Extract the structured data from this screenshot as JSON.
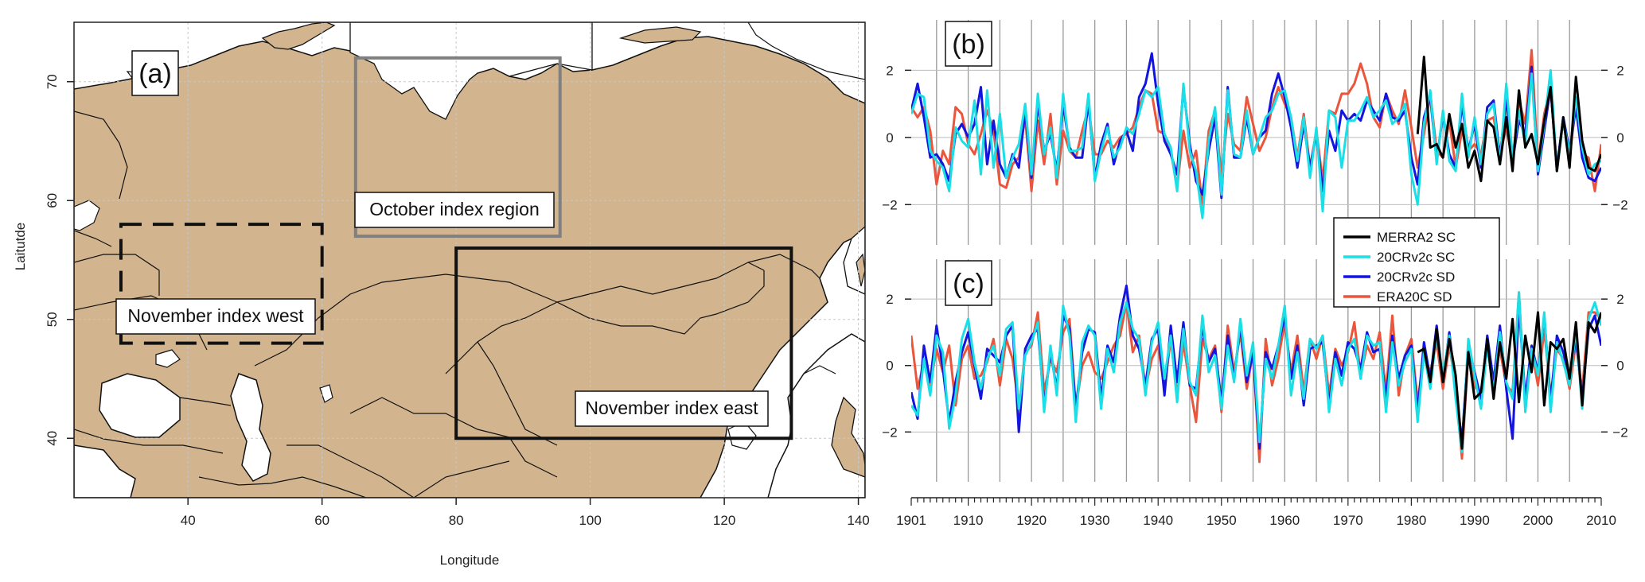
{
  "panel_a": {
    "label": "(a)",
    "xlabel": "Longitude",
    "ylabel": "Laitutde",
    "boxes": [
      {
        "name": "October index region",
        "label": "October index region",
        "lon": [
          65,
          95.5
        ],
        "lat": [
          57,
          72
        ],
        "style": "grey-solid"
      },
      {
        "name": "November index west",
        "label": "November index west",
        "lon": [
          30,
          60
        ],
        "lat": [
          48,
          58
        ],
        "style": "dashed"
      },
      {
        "name": "November index east",
        "label": "November index east",
        "lon": [
          80,
          130
        ],
        "lat": [
          40,
          56
        ],
        "style": "solid"
      }
    ]
  },
  "chart_data": [
    {
      "type": "map",
      "panel": "(a)",
      "xlabel": "Longitude",
      "ylabel": "Laitutde",
      "xlim": [
        23,
        141
      ],
      "ylim": [
        35,
        75
      ],
      "xticks": [
        40,
        60,
        80,
        100,
        120,
        140
      ],
      "yticks": [
        40,
        50,
        60,
        70
      ],
      "grid": true,
      "regions": [
        {
          "label": "October index region",
          "lon": [
            65,
            95.5
          ],
          "lat": [
            57,
            72
          ]
        },
        {
          "label": "November index west",
          "lon": [
            30,
            60
          ],
          "lat": [
            48,
            58
          ]
        },
        {
          "label": "November index east",
          "lon": [
            80,
            130
          ],
          "lat": [
            40,
            56
          ]
        }
      ]
    },
    {
      "type": "line",
      "panel": "(b)",
      "xlim": [
        1901,
        2010
      ],
      "ylim": [
        -3.2,
        3.5
      ],
      "xticks": [
        1901,
        1910,
        1920,
        1930,
        1940,
        1950,
        1960,
        1970,
        1980,
        1990,
        2000,
        2010
      ],
      "yticks": [
        -2,
        0,
        2
      ],
      "grid": true,
      "series": [
        {
          "name": "MERRA2 SC",
          "color": "#000000",
          "start": 1981,
          "values": [
            0.1,
            2.4,
            -0.3,
            -0.2,
            -0.6,
            0.7,
            -0.3,
            0.4,
            -0.9,
            -0.4,
            -1.3,
            0.5,
            0.3,
            -0.8,
            0.6,
            -1.0,
            1.4,
            -0.3,
            0.1,
            -0.8,
            0.5,
            1.5,
            -1.0,
            0.6,
            -0.9,
            1.8,
            -0.1,
            -0.9,
            -1.0,
            -0.5
          ]
        },
        {
          "name": "20CRv2c SC",
          "color": "#1adfe6",
          "start": 1901,
          "values": [
            0.7,
            1.3,
            1.2,
            -0.4,
            -0.7,
            -0.9,
            -1.6,
            0.3,
            -0.1,
            -0.3,
            1.1,
            -1.1,
            1.4,
            -0.9,
            0.7,
            -1.2,
            -0.6,
            -0.2,
            1.0,
            -1.1,
            1.3,
            -0.5,
            0.3,
            -1.2,
            1.3,
            -0.4,
            -0.4,
            -0.3,
            1.3,
            -1.3,
            -0.4,
            0.3,
            -0.6,
            -0.3,
            0.3,
            0.1,
            0.7,
            1.4,
            1.2,
            1.5,
            0.1,
            -0.3,
            -1.6,
            1.6,
            -0.4,
            -1.0,
            -2.4,
            -0.1,
            0.9,
            -1.7,
            1.4,
            -0.5,
            -0.6,
            0.8,
            -0.5,
            0.0,
            0.6,
            0.8,
            1.3,
            1.4,
            0.6,
            -0.7,
            0.6,
            -1.2,
            0.3,
            -2.2,
            0.8,
            0.6,
            -0.9,
            0.5,
            0.5,
            0.8,
            1.2,
            0.6,
            0.8,
            1.1,
            0.4,
            0.6,
            1.0,
            -1.1,
            -2.0,
            0.4,
            1.4,
            -0.8,
            0.8,
            -0.7,
            -1.0,
            1.3,
            -0.6,
            0.6,
            -0.8,
            0.7,
            1.0,
            -0.8,
            1.6,
            -0.6,
            0.8,
            -0.2,
            1.9,
            -1.0,
            0.4,
            2.0,
            -1.0,
            0.5,
            -0.5,
            1.2,
            -0.3,
            -1.1,
            -0.8,
            -0.7
          ]
        },
        {
          "name": "20CRv2c SD",
          "color": "#1414e0",
          "start": 1901,
          "values": [
            0.8,
            1.6,
            0.6,
            -0.6,
            -0.5,
            -0.8,
            -1.3,
            0.1,
            0.4,
            0.0,
            0.4,
            1.5,
            -0.8,
            0.5,
            -0.8,
            -1.2,
            -0.5,
            -0.9,
            0.8,
            -1.2,
            1.0,
            -0.4,
            0.1,
            -1.0,
            1.0,
            -0.3,
            -0.6,
            -0.6,
            1.1,
            -1.2,
            -0.2,
            0.4,
            -0.8,
            -0.1,
            0.2,
            -0.4,
            1.2,
            1.6,
            2.5,
            1.0,
            -0.1,
            -0.5,
            -1.1,
            1.5,
            -0.2,
            -1.3,
            -1.7,
            -0.4,
            0.6,
            -1.8,
            1.5,
            -0.6,
            -0.6,
            0.6,
            -0.5,
            0.0,
            0.2,
            1.3,
            1.9,
            1.2,
            0.3,
            -0.9,
            0.4,
            -0.9,
            0.1,
            -1.6,
            0.2,
            -0.4,
            0.8,
            0.5,
            0.7,
            0.5,
            1.1,
            0.8,
            0.5,
            1.3,
            0.6,
            0.5,
            0.8,
            -0.6,
            -1.4,
            0.6,
            1.2,
            -0.7,
            0.7,
            -0.5,
            -0.9,
            1.0,
            -0.4,
            0.4,
            -0.9,
            0.9,
            1.1,
            -0.6,
            1.2,
            -0.7,
            0.5,
            0.1,
            2.1,
            -1.1,
            0.2,
            1.5,
            -0.9,
            0.6,
            -0.4,
            0.9,
            -0.6,
            -1.2,
            -1.3,
            -0.9
          ]
        },
        {
          "name": "ERA20C SD",
          "color": "#ea553c",
          "start": 1901,
          "values": [
            0.9,
            0.6,
            0.9,
            0.2,
            -1.4,
            -0.4,
            -0.8,
            0.9,
            0.7,
            -0.2,
            -0.5,
            0.1,
            0.8,
            0.2,
            -1.4,
            -1.5,
            -0.8,
            -0.6,
            0.6,
            -1.6,
            0.5,
            -0.8,
            0.7,
            -1.4,
            0.2,
            -0.4,
            -0.6,
            0.2,
            0.9,
            -0.5,
            -0.5,
            -0.1,
            -0.3,
            0.0,
            0.1,
            0.3,
            0.9,
            1.4,
            1.3,
            0.2,
            0.1,
            -0.4,
            -1.5,
            0.2,
            -0.9,
            -0.4,
            -2.0,
            0.2,
            0.8,
            -1.2,
            0.7,
            -0.2,
            -0.4,
            1.2,
            0.4,
            -0.4,
            0.0,
            0.9,
            1.5,
            1.0,
            0.6,
            -0.6,
            0.7,
            -0.9,
            0.2,
            -1.3,
            0.8,
            0.7,
            1.3,
            1.3,
            1.6,
            2.2,
            1.6,
            0.6,
            0.3,
            1.3,
            0.8,
            0.4,
            1.4,
            0.3,
            -0.9,
            0.1,
            1.3,
            -0.4,
            -0.6,
            0.5,
            -0.9,
            0.2,
            -0.4,
            -0.2,
            -0.5,
            0.5,
            0.6,
            -0.5,
            0.3,
            -0.7,
            1.1,
            0.4,
            2.6,
            -0.8,
            0.7,
            1.5,
            -1.0,
            0.5,
            -0.6,
            1.0,
            -0.5,
            -0.6,
            -1.6,
            -0.2
          ]
        }
      ]
    },
    {
      "type": "line",
      "panel": "(c)",
      "xlim": [
        1901,
        2010
      ],
      "ylim": [
        -3.5,
        3.2
      ],
      "xticks": [
        1901,
        1910,
        1920,
        1930,
        1940,
        1950,
        1960,
        1970,
        1980,
        1990,
        2000,
        2010
      ],
      "yticks": [
        -2,
        0,
        2
      ],
      "grid": true,
      "series": [
        {
          "name": "MERRA2 SC",
          "color": "#000000",
          "start": 1981,
          "values": [
            0.4,
            0.5,
            -0.5,
            1.1,
            -0.5,
            0.8,
            -0.3,
            -2.5,
            0.4,
            -1.0,
            -0.8,
            0.8,
            -1.0,
            0.7,
            -0.4,
            1.4,
            -1.1,
            0.9,
            -0.2,
            1.6,
            -1.2,
            0.7,
            0.5,
            0.8,
            -0.4,
            1.3,
            -1.2,
            1.3,
            1.0,
            1.6
          ]
        },
        {
          "name": "20CRv2c SC",
          "color": "#1adfe6",
          "start": 1901,
          "values": [
            -1.2,
            -1.5,
            0.2,
            -0.9,
            0.9,
            0.4,
            -1.9,
            -0.9,
            0.8,
            1.4,
            0.1,
            -0.7,
            0.2,
            0.6,
            -0.3,
            1.1,
            1.3,
            -1.3,
            0.3,
            0.7,
            1.3,
            -1.4,
            0.6,
            -0.9,
            1.8,
            0.9,
            -1.7,
            0.7,
            1.2,
            0.9,
            -1.3,
            0.5,
            -0.2,
            1.3,
            1.9,
            1.1,
            0.8,
            -0.9,
            0.7,
            1.3,
            -0.4,
            0.9,
            -1.1,
            1.1,
            -0.5,
            -0.9,
            1.5,
            -0.2,
            0.3,
            -1.3,
            0.6,
            -0.5,
            1.4,
            -0.3,
            0.7,
            -2.3,
            0.2,
            -0.4,
            0.6,
            1.8,
            -0.9,
            0.4,
            -1.0,
            0.8,
            0.5,
            0.9,
            -1.4,
            0.2,
            -0.6,
            0.5,
            0.8,
            -0.4,
            0.9,
            0.6,
            0.7,
            -1.4,
            0.7,
            -0.6,
            0.1,
            0.5,
            -1.7,
            0.4,
            -0.7,
            1.0,
            -0.3,
            0.9,
            -1.0,
            -2.6,
            0.8,
            -0.3,
            -1.3,
            0.6,
            -0.8,
            1.0,
            -0.5,
            -1.0,
            2.2,
            -1.4,
            0.5,
            -0.3,
            1.6,
            -1.4,
            0.7,
            0.1,
            -0.6,
            1.1,
            -1.3,
            1.4,
            1.9,
            1.2
          ]
        },
        {
          "name": "20CRv2c SD",
          "color": "#1414e0",
          "start": 1901,
          "values": [
            -0.8,
            -1.6,
            0.6,
            -0.5,
            1.2,
            -0.1,
            -1.7,
            -0.5,
            0.4,
            1.0,
            0.0,
            -1.0,
            0.5,
            0.3,
            0.1,
            0.9,
            1.2,
            -2.0,
            0.5,
            0.9,
            1.1,
            -1.2,
            0.4,
            -0.7,
            1.5,
            1.1,
            -1.3,
            0.4,
            1.1,
            1.0,
            -1.0,
            0.6,
            0.1,
            1.5,
            2.4,
            0.9,
            0.5,
            -0.6,
            0.8,
            1.1,
            -0.9,
            1.2,
            -0.5,
            1.3,
            -0.6,
            -0.7,
            1.2,
            0.1,
            0.5,
            -1.1,
            0.9,
            -0.4,
            1.2,
            -0.5,
            0.4,
            -2.5,
            0.4,
            -0.1,
            0.6,
            1.5,
            -0.4,
            0.6,
            -1.2,
            0.5,
            0.6,
            0.7,
            -1.2,
            0.4,
            -0.3,
            0.7,
            0.5,
            -0.1,
            1.0,
            0.4,
            0.5,
            -1.0,
            0.9,
            -0.4,
            0.3,
            0.6,
            -1.4,
            0.7,
            -0.4,
            1.2,
            -0.5,
            1.0,
            -0.7,
            -2.3,
            0.6,
            -0.2,
            -1.0,
            0.9,
            -0.5,
            1.2,
            -0.7,
            -2.2,
            1.8,
            -1.0,
            0.6,
            -0.2,
            1.5,
            -1.1,
            0.9,
            0.4,
            -0.3,
            0.8,
            -1.0,
            1.1,
            1.5,
            0.6
          ]
        },
        {
          "name": "ERA20C SD",
          "color": "#ea553c",
          "start": 1901,
          "values": [
            0.9,
            -0.7,
            0.1,
            -0.6,
            0.5,
            -0.2,
            0.6,
            -1.2,
            0.2,
            0.6,
            -0.4,
            -0.3,
            0.1,
            0.8,
            -0.6,
            0.8,
            0.2,
            -1.3,
            0.4,
            0.6,
            1.6,
            -0.8,
            0.2,
            -0.2,
            1.0,
            1.4,
            -1.3,
            0.0,
            0.4,
            -0.2,
            -0.4,
            0.1,
            0.6,
            0.9,
            1.9,
            0.4,
            0.9,
            -0.7,
            0.2,
            0.6,
            -0.7,
            0.8,
            -0.9,
            0.7,
            -0.6,
            -1.7,
            0.8,
            0.2,
            0.6,
            -1.4,
            1.2,
            -0.2,
            1.0,
            -0.7,
            0.4,
            -2.9,
            0.8,
            -0.6,
            0.2,
            1.3,
            -0.2,
            0.9,
            -0.8,
            0.8,
            0.2,
            0.9,
            -0.9,
            0.5,
            0.0,
            0.4,
            1.3,
            -0.3,
            0.6,
            0.2,
            1.0,
            -0.8,
            1.5,
            -0.9,
            0.3,
            0.8,
            -1.1,
            0.3,
            -0.2,
            0.7,
            -0.7,
            0.6,
            -0.6,
            -2.8,
            0.4,
            -0.6,
            -0.9,
            0.7,
            -0.6,
            0.5,
            -0.6,
            -0.8,
            2.2,
            -1.3,
            0.5,
            -0.6,
            1.1,
            -0.9,
            0.5,
            0.2,
            -0.7,
            0.7,
            -0.8,
            1.6,
            1.6,
            1.4
          ]
        }
      ]
    }
  ],
  "legend": {
    "placement": "center-right",
    "entries": [
      {
        "label": "MERRA2 SC",
        "color": "#000000"
      },
      {
        "label": "20CRv2c SC",
        "color": "#1adfe6"
      },
      {
        "label": "20CRv2c SD",
        "color": "#1414e0"
      },
      {
        "label": "ERA20C SD",
        "color": "#ea553c"
      }
    ]
  },
  "colors": {
    "land": "#d2b48e",
    "ocean": "#ffffff",
    "grid": "#9a9a9a",
    "region_grey": "#808080"
  }
}
